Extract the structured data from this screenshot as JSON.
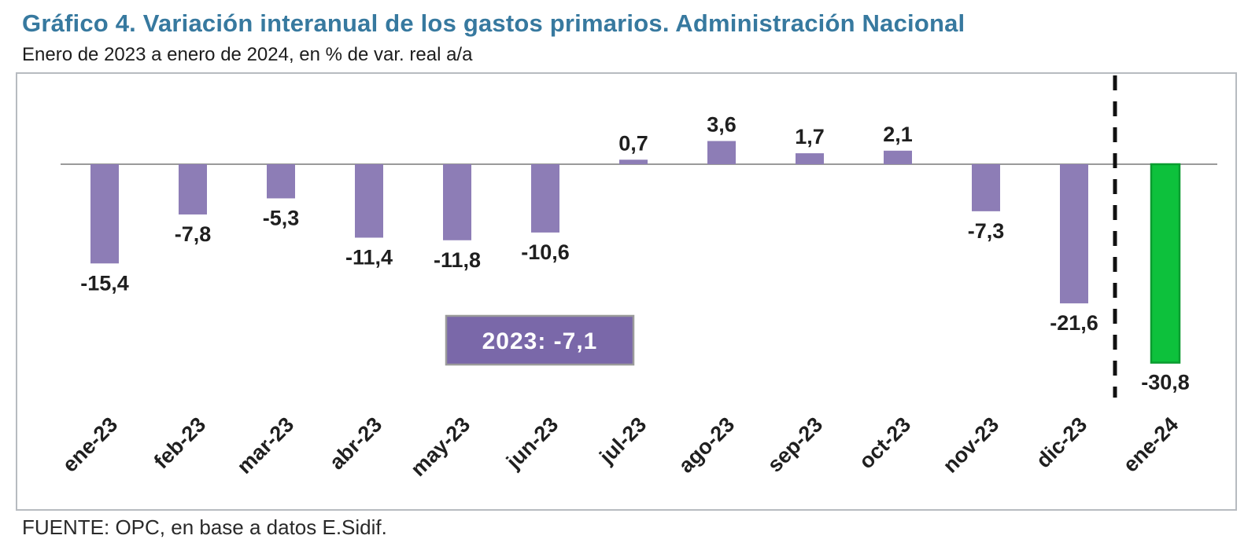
{
  "header": {
    "title": "Gráfico 4. Variación interanual de los gastos primarios. Administración Nacional",
    "subtitle": "Enero de 2023 a enero de 2024, en % de var. real a/a"
  },
  "footer": {
    "source": "FUENTE: OPC, en base a datos E.Sidif."
  },
  "colors": {
    "title_text": "#37799f",
    "body_text": "#1f1f1f",
    "bar": "#8d7db6",
    "highlight_bar": "#0dc13c",
    "highlight_bar_border": "#0a9c30",
    "annotation_bg": "#7a68a9",
    "annotation_border": "#9b9b9b",
    "zero_line": "#9a9a9a",
    "separator_line": "#111111",
    "frame_border": "#b7bbc0"
  },
  "chart_data": {
    "type": "bar",
    "title": "Gráfico 4. Variación interanual de los gastos primarios. Administración Nacional",
    "subtitle": "Enero de 2023 a enero de 2024, en % de var. real a/a",
    "categories": [
      "ene-23",
      "feb-23",
      "mar-23",
      "abr-23",
      "may-23",
      "jun-23",
      "jul-23",
      "ago-23",
      "sep-23",
      "oct-23",
      "nov-23",
      "dic-23",
      "ene-24"
    ],
    "values": [
      -15.4,
      -7.8,
      -5.3,
      -11.4,
      -11.8,
      -10.6,
      0.7,
      3.6,
      1.7,
      2.1,
      -7.3,
      -21.6,
      -30.8
    ],
    "value_labels": [
      "-15,4",
      "-7,8",
      "-5,3",
      "-11,4",
      "-11,8",
      "-10,6",
      "0,7",
      "3,6",
      "1,7",
      "2,1",
      "-7,3",
      "-21,6",
      "-30,8"
    ],
    "unit": "% de var. real a/a",
    "highlight_index": 12,
    "separator_before_index": 12,
    "annotation": "2023: -7,1",
    "ylim": [
      -35,
      8
    ],
    "grid": false,
    "legend": false,
    "xlabel": "",
    "ylabel": ""
  }
}
